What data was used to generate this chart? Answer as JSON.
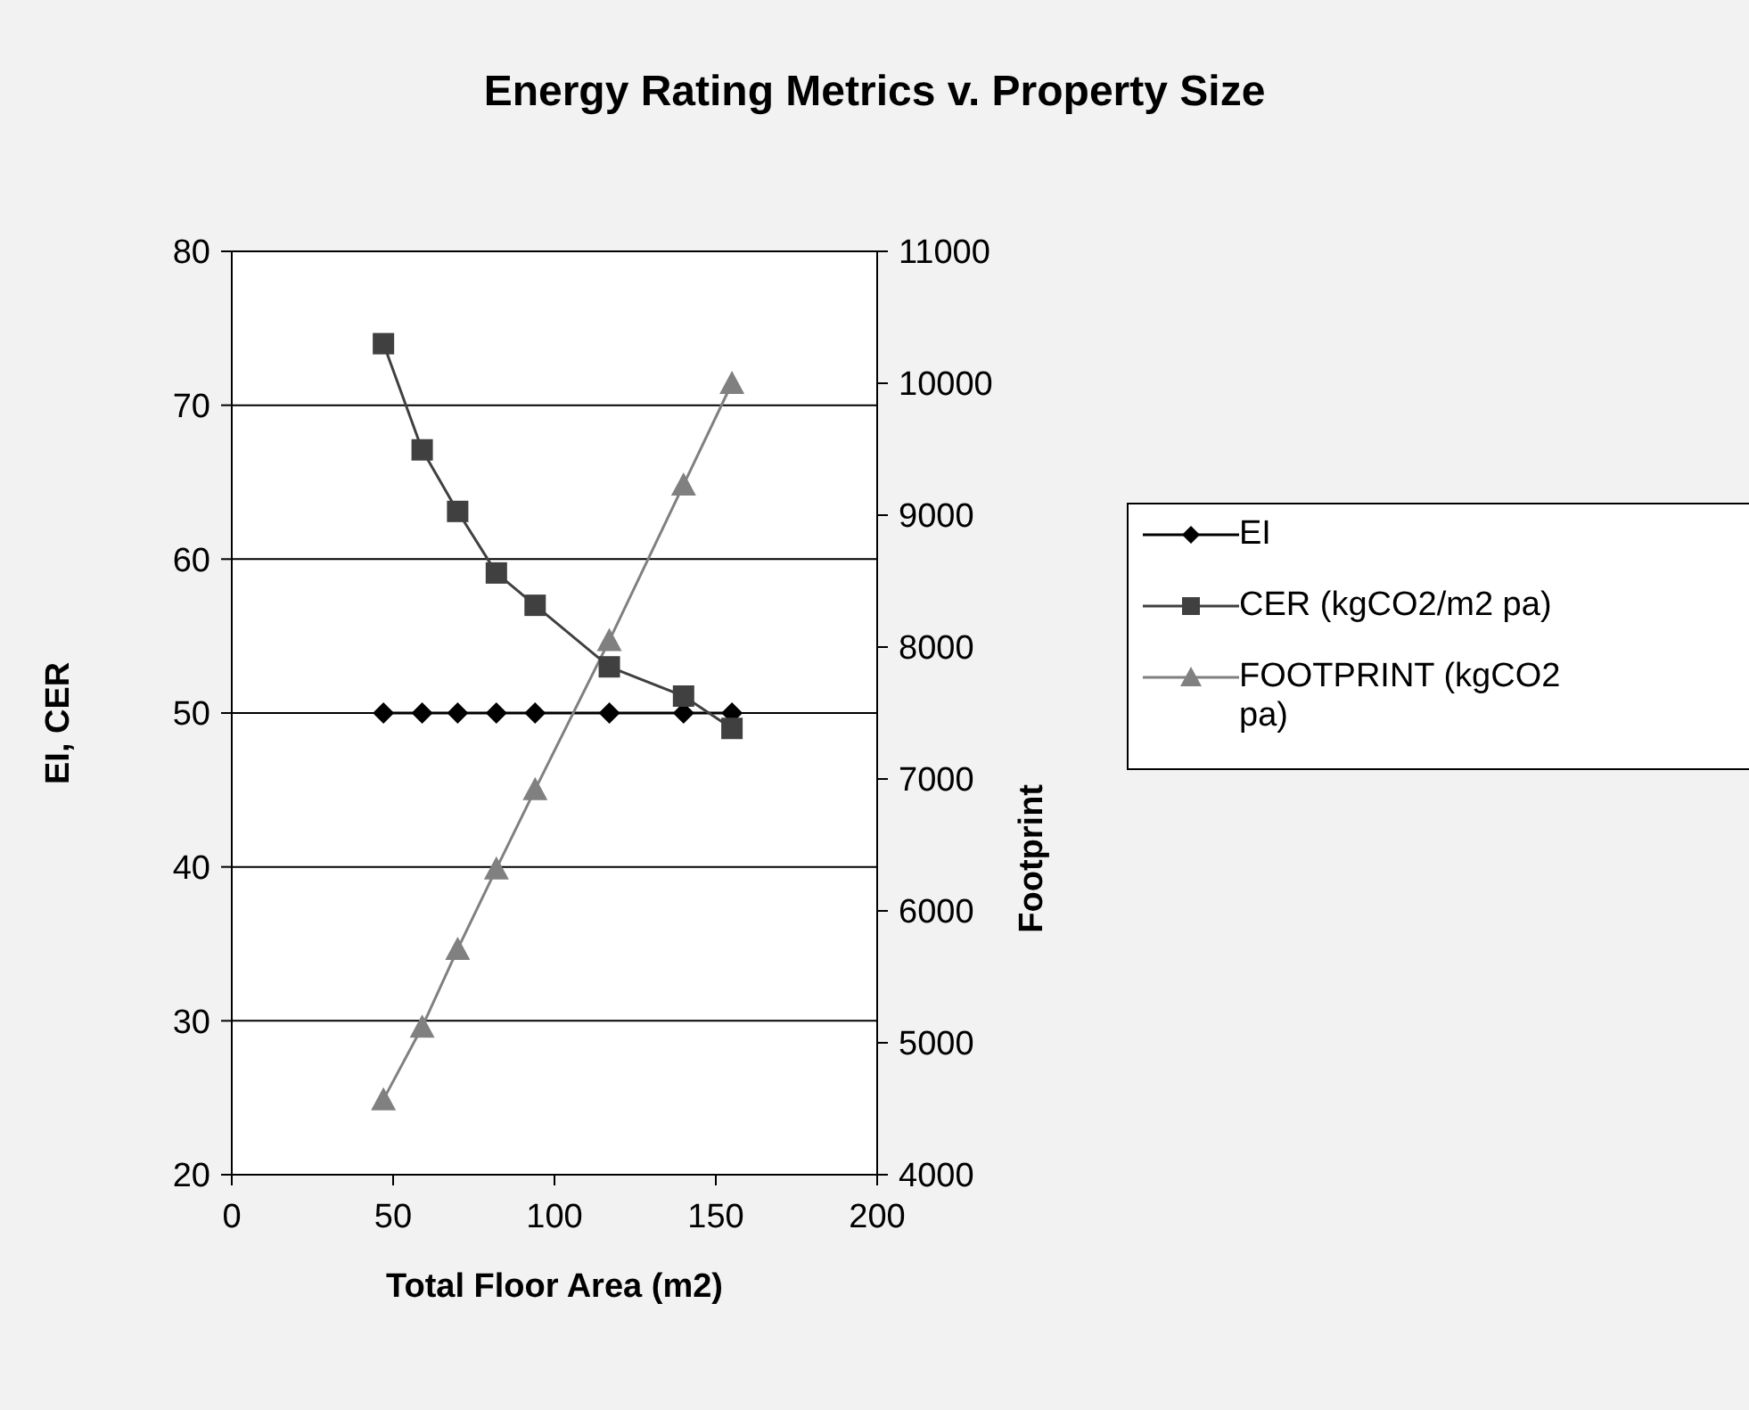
{
  "chart_data": {
    "type": "line",
    "title": "Energy Rating Metrics v. Property Size",
    "xlabel": "Total Floor Area (m2)",
    "ylabel": "EI, CER",
    "y2label": "Footprint",
    "x": [
      47,
      59,
      70,
      82,
      94,
      117,
      140,
      155
    ],
    "series": [
      {
        "name": "EI",
        "color": "#000000",
        "marker": "diamond",
        "values": [
          50,
          50,
          50,
          50,
          50,
          50,
          50,
          50
        ]
      },
      {
        "name": "CER (kgCO2/m2 pa)",
        "color": "#404040",
        "marker": "square",
        "values": [
          74,
          67.1,
          63.1,
          59.1,
          57,
          53,
          51.1,
          49
        ]
      },
      {
        "name": "FOOTPRINT (kgCO2 pa)",
        "color": "#808080",
        "marker": "triangle",
        "axis": "y2",
        "values": [
          4570,
          5120,
          5710,
          6320,
          6920,
          8050,
          9230,
          10000
        ]
      }
    ],
    "xlim": [
      0,
      200
    ],
    "xticks": [
      0,
      50,
      100,
      150,
      200
    ],
    "ylim": [
      20,
      80
    ],
    "yticks": [
      20,
      30,
      40,
      50,
      60,
      70,
      80
    ],
    "y2lim": [
      4000,
      11000
    ],
    "y2ticks": [
      4000,
      5000,
      6000,
      7000,
      8000,
      9000,
      10000,
      11000
    ],
    "grid": "y",
    "legend": "right"
  }
}
